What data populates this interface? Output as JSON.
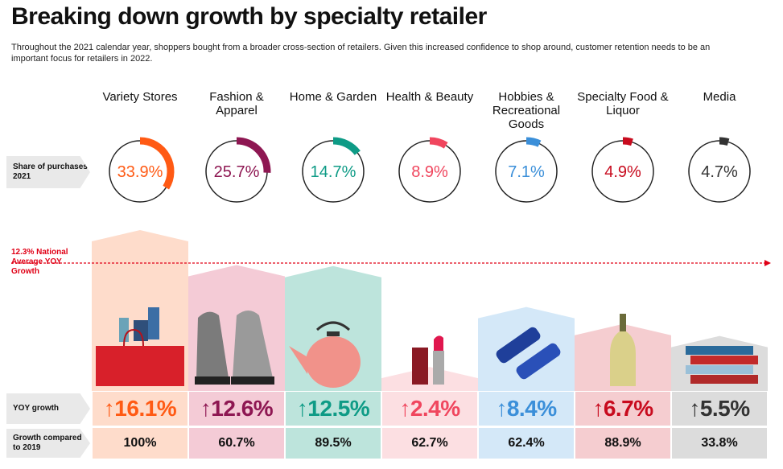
{
  "title": "Breaking down growth by specialty retailer",
  "subtitle": "Throughout the 2021 calendar year, shoppers bought from a broader cross-section of retailers. Given this increased confidence to shop around, customer retention needs to be an important focus for retailers in 2022.",
  "row_labels": {
    "share": "Share of purchases 2021",
    "national": "12.3% National Average YOY Growth",
    "yoy": "YOY growth",
    "growth2019": "Growth compared to 2019"
  },
  "chart_data": {
    "type": "bar",
    "categories": [
      "Variety Stores",
      "Fashion & Apparel",
      "Home & Garden",
      "Health & Beauty",
      "Hobbies & Recreational Goods",
      "Specialty Food & Liquor",
      "Media"
    ],
    "share_labels": [
      "33.9%",
      "25.7%",
      "14.7%",
      "8.9%",
      "7.1%",
      "4.9%",
      "4.7%"
    ],
    "share_values": [
      33.9,
      25.7,
      14.7,
      8.9,
      7.1,
      4.9,
      4.7
    ],
    "yoy_labels": [
      "16.1%",
      "12.6%",
      "12.5%",
      "2.4%",
      "8.4%",
      "6.7%",
      "5.5%"
    ],
    "yoy_values": [
      16.1,
      12.6,
      12.5,
      2.4,
      8.4,
      6.7,
      5.5
    ],
    "growth2019_labels": [
      "100%",
      "60.7%",
      "89.5%",
      "62.7%",
      "62.4%",
      "88.9%",
      "33.8%"
    ],
    "reference_line": 12.3,
    "ylim": [
      0,
      16.1
    ],
    "colors": [
      "#ff5a14",
      "#8e1752",
      "#0e9b86",
      "#f0465e",
      "#3b8fd9",
      "#c80b1e",
      "#333333"
    ],
    "light_colors": [
      "#fedccb",
      "#f4cbd6",
      "#bde4dc",
      "#fcdfe2",
      "#d4e8f8",
      "#f5cdd0",
      "#dcdcdc"
    ],
    "icons": [
      "shopping-bag-icon",
      "sneakers-icon",
      "kettle-icon",
      "lipstick-icon",
      "dumbbells-icon",
      "wine-bottle-icon",
      "books-icon"
    ]
  }
}
